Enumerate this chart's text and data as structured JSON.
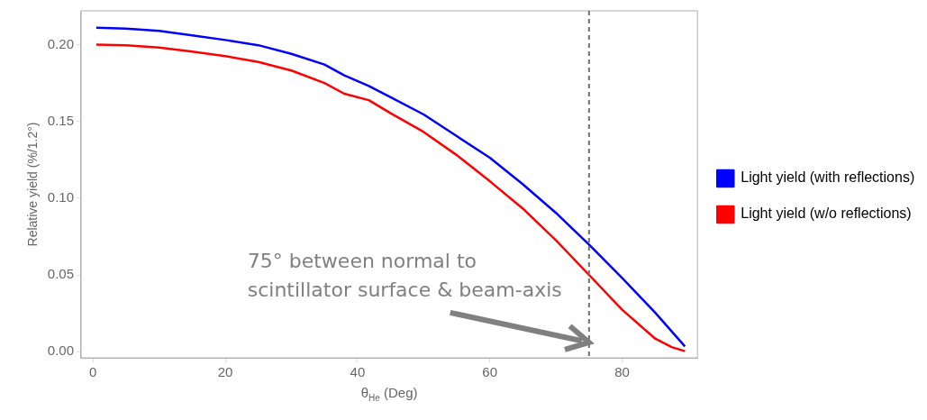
{
  "chart_data": {
    "type": "line",
    "xlabel": "θ$_{He}$ (Deg)",
    "ylabel": "Relative yield (%/1.2°)",
    "xlim": [
      -1.8,
      91.4
    ],
    "xticks": [
      0,
      20,
      40,
      60,
      80
    ],
    "ylim": [
      -0.004,
      0.222
    ],
    "yticks": [
      {
        "value": 0,
        "label": "0.00"
      },
      {
        "value": 0.05,
        "label": "0.05"
      },
      {
        "value": 0.1,
        "label": "0.10"
      },
      {
        "value": 0.15,
        "label": "0.15"
      },
      {
        "value": 0.2,
        "label": "0.20"
      }
    ],
    "grid": false,
    "legend": "right",
    "marker": "none",
    "line_style": "solid",
    "series": [
      {
        "name": "Light yield (with reflections)",
        "color": "#0000ff",
        "x": [
          0.5,
          5,
          10,
          15,
          20,
          25,
          30,
          35,
          38,
          41.7,
          45,
          50,
          55,
          60,
          65,
          70,
          75,
          80,
          85,
          89.5
        ],
        "values": [
          0.211,
          0.2104,
          0.209,
          0.206,
          0.203,
          0.1996,
          0.194,
          0.187,
          0.18,
          0.1731,
          0.1657,
          0.1545,
          0.1404,
          0.1263,
          0.109,
          0.0904,
          0.0697,
          0.048,
          0.0254,
          0.0034
        ]
      },
      {
        "name": "Light yield (w/o reflections)",
        "color": "#ff0000",
        "x": [
          0.5,
          5,
          10,
          15,
          20,
          25,
          30,
          35,
          38,
          41.7,
          45,
          50,
          55,
          60,
          65,
          70,
          75,
          80,
          85,
          87.5,
          89.5
        ],
        "values": [
          0.2,
          0.1996,
          0.1981,
          0.1955,
          0.1925,
          0.1887,
          0.1831,
          0.175,
          0.168,
          0.1638,
          0.1553,
          0.1431,
          0.128,
          0.111,
          0.0932,
          0.0725,
          0.05,
          0.0273,
          0.0085,
          0.003,
          0.0003
        ]
      }
    ],
    "ref_lines": [
      {
        "axis": "x",
        "value": 75,
        "color": "#707070",
        "line_style": "dashed"
      }
    ],
    "annotations": [
      {
        "text": "75° between normal to\nscintillator surface & beam-axis",
        "x": 75,
        "y": 0.006
      }
    ]
  }
}
